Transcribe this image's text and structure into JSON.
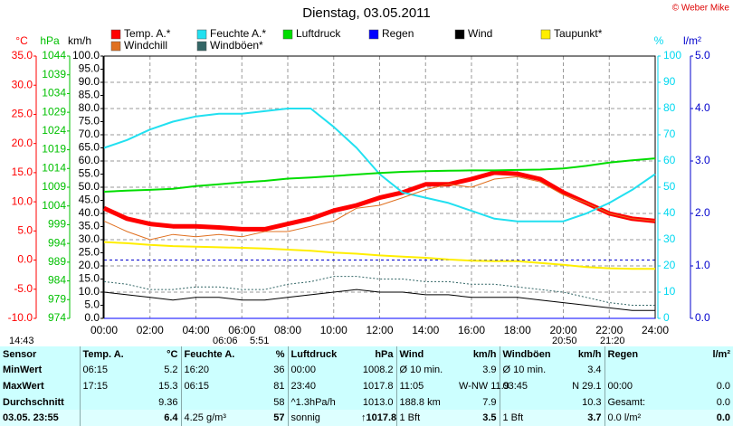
{
  "chart_data": {
    "type": "line",
    "title": "Dienstag, 03.05.2011",
    "copyright": "© Weber Mike",
    "grid": true,
    "categories": [
      "00:00",
      null,
      "02:00",
      null,
      "04:00",
      null,
      "06:00",
      null,
      "08:00",
      null,
      "10:00",
      null,
      "12:00",
      null,
      "14:00",
      null,
      "16:00",
      null,
      "18:00",
      null,
      "20:00",
      null,
      "22:00",
      null,
      "24:00"
    ],
    "axes": [
      {
        "label": "°C",
        "color": "#ff0000",
        "lim": [
          -10,
          35
        ],
        "ticks": [
          {
            "value": -10,
            "label": "-10.0"
          },
          {
            "value": -5,
            "label": "-5.0"
          },
          {
            "value": 0,
            "label": "0.0"
          },
          {
            "value": 5,
            "label": "5.0"
          },
          {
            "value": 10,
            "label": "10.0"
          },
          {
            "value": 15,
            "label": "15.0"
          },
          {
            "value": 20,
            "label": "20.0"
          },
          {
            "value": 25,
            "label": "25.0"
          },
          {
            "value": 30,
            "label": "30.0"
          },
          {
            "value": 35,
            "label": "35.0"
          }
        ]
      },
      {
        "label": "hPa",
        "color": "#00c000",
        "lim": [
          974,
          1044
        ],
        "ticks": [
          974,
          979,
          984,
          989,
          994,
          999,
          1004,
          1009,
          1014,
          1019,
          1024,
          1029,
          1034,
          1039,
          1044
        ]
      },
      {
        "label": "km/h",
        "color": "#000000",
        "lim": [
          0,
          100
        ],
        "ticks": [
          {
            "value": 0,
            "label": "0.0"
          },
          {
            "value": 5,
            "label": "5.0"
          },
          {
            "value": 10,
            "label": "10.0"
          },
          {
            "value": 15,
            "label": "15.0"
          },
          {
            "value": 20,
            "label": "20.0"
          },
          {
            "value": 25,
            "label": "25.0"
          },
          {
            "value": 30,
            "label": "30.0"
          },
          {
            "value": 35,
            "label": "35.0"
          },
          {
            "value": 40,
            "label": "40.0"
          },
          {
            "value": 45,
            "label": "45.0"
          },
          {
            "value": 50,
            "label": "50.0"
          },
          {
            "value": 55,
            "label": "55.0"
          },
          {
            "value": 60,
            "label": "60.0"
          },
          {
            "value": 65,
            "label": "65.0"
          },
          {
            "value": 70,
            "label": "70.0"
          },
          {
            "value": 75,
            "label": "75.0"
          },
          {
            "value": 80,
            "label": "80.0"
          },
          {
            "value": 85,
            "label": "85.0"
          },
          {
            "value": 90,
            "label": "90.0"
          },
          {
            "value": 95,
            "label": "95.0"
          },
          {
            "value": 100,
            "label": "100.0"
          }
        ]
      },
      {
        "label": "%",
        "color": "#00d8f0",
        "lim": [
          0,
          100
        ],
        "ticks": [
          0,
          10,
          20,
          30,
          40,
          50,
          60,
          70,
          80,
          90,
          100
        ]
      },
      {
        "label": "l/m²",
        "color": "#0000cc",
        "lim": [
          0,
          5
        ],
        "ticks": [
          {
            "value": 0,
            "label": "0.0"
          },
          {
            "value": 1,
            "label": "1.0"
          },
          {
            "value": 2,
            "label": "2.0"
          },
          {
            "value": 3,
            "label": "3.0"
          },
          {
            "value": 4,
            "label": "4.0"
          },
          {
            "value": 5,
            "label": "5.0"
          }
        ]
      }
    ],
    "series": [
      {
        "name": "Temp. A.*",
        "color": "#ff0000",
        "axis": 0,
        "width": 5,
        "values": [
          8.9,
          7.1,
          6.2,
          5.8,
          5.8,
          5.6,
          5.3,
          5.3,
          6.2,
          7.1,
          8.5,
          9.4,
          10.7,
          11.6,
          13.0,
          13.0,
          13.9,
          15.0,
          14.8,
          13.9,
          11.6,
          9.8,
          8.0,
          7.1,
          6.7
        ]
      },
      {
        "name": "Feuchte A.*",
        "color": "#22e0f0",
        "axis": 3,
        "width": 2,
        "values": [
          65,
          68,
          72,
          75,
          77,
          78,
          78,
          79,
          80,
          80,
          73,
          65,
          55,
          48,
          46,
          44,
          41,
          38,
          37,
          37,
          37,
          40,
          44,
          49,
          55
        ]
      },
      {
        "name": "Luftdruck",
        "color": "#00dd00",
        "axis": 1,
        "width": 2,
        "values": [
          1007.8,
          1008.1,
          1008.3,
          1008.6,
          1009.3,
          1009.8,
          1010.3,
          1010.7,
          1011.3,
          1011.6,
          1012.0,
          1012.4,
          1012.8,
          1013.1,
          1013.3,
          1013.4,
          1013.5,
          1013.5,
          1013.6,
          1013.7,
          1014.0,
          1014.7,
          1015.6,
          1016.2,
          1016.7
        ]
      },
      {
        "name": "Regen",
        "color": "#0000ff",
        "axis": 4,
        "width": 1,
        "values": [
          0,
          0,
          0,
          0,
          0,
          0,
          0,
          0,
          0,
          0,
          0,
          0,
          0,
          0,
          0,
          0,
          0,
          0,
          0,
          0,
          0,
          0,
          0,
          0,
          0
        ]
      },
      {
        "name": "Wind",
        "color": "#000000",
        "axis": 2,
        "width": 1,
        "values": [
          10,
          9,
          8,
          7,
          8,
          8,
          7,
          7,
          8,
          9,
          10,
          11,
          10,
          10,
          9,
          9,
          8,
          8,
          8,
          7,
          6,
          5,
          4,
          3,
          3
        ]
      },
      {
        "name": "Taupunkt*",
        "color": "#ffee00",
        "axis": 0,
        "width": 2,
        "values": [
          3.1,
          2.9,
          2.6,
          2.4,
          2.3,
          2.2,
          2.1,
          2.0,
          1.8,
          1.6,
          1.3,
          1.1,
          0.8,
          0.6,
          0.4,
          0.1,
          -0.1,
          -0.2,
          -0.2,
          -0.5,
          -0.8,
          -1.2,
          -1.4,
          -1.5,
          -1.5
        ]
      },
      {
        "name": "Windchill",
        "color": "#e07020",
        "axis": 0,
        "width": 1,
        "values": [
          6.7,
          4.9,
          3.5,
          4.4,
          4.0,
          4.4,
          4.0,
          4.9,
          4.9,
          5.8,
          6.7,
          8.9,
          9.4,
          10.7,
          12.1,
          13.0,
          12.5,
          13.9,
          14.3,
          13.4,
          11.2,
          9.8,
          8.0,
          7.1,
          6.7
        ]
      },
      {
        "name": "Windböen*",
        "color": "#336666",
        "axis": 2,
        "width": 1,
        "dash": true,
        "values": [
          14,
          13,
          11,
          11,
          12,
          12,
          11,
          11,
          13,
          14,
          16,
          16,
          15,
          15,
          14,
          14,
          13,
          13,
          12,
          11,
          10,
          8,
          6,
          5,
          5
        ]
      }
    ],
    "annotations": [
      "14:43",
      "06:06",
      "5:51",
      "20:50",
      "21:20"
    ]
  },
  "table": {
    "header": [
      "Sensor",
      "Temp. A.",
      "°C",
      "Feuchte A.",
      "%",
      "Luftdruck",
      "hPa",
      "Wind",
      "km/h",
      "Windböen",
      "km/h",
      "Regen",
      "l/m²"
    ],
    "rows": [
      [
        "MinWert",
        "06:15",
        "5.2",
        "16:20",
        "36",
        "00:00",
        "1008.2",
        "Ø 10 min.",
        "3.9",
        "Ø 10 min.",
        "3.4",
        null,
        null
      ],
      [
        "MaxWert",
        "17:15",
        "15.3",
        "06:15",
        "81",
        "23:40",
        "1017.8",
        "11:05",
        "W-NW 11.9",
        "03:45",
        "N 29.1",
        "00:00",
        "0.0"
      ],
      [
        "Durchschnitt",
        null,
        "9.36",
        null,
        "58",
        "^1.3hPa/h",
        "1013.0",
        "188.8 km",
        "7.9",
        null,
        "10.3",
        "Gesamt:",
        "0.0"
      ],
      [
        "03.05. 23:55",
        null,
        "6.4",
        "4.25 g/m³",
        "57",
        "sonnig",
        "↑1017.8",
        "1 Bft",
        "3.5",
        "1 Bft",
        "3.7",
        "0.0 l/m²",
        "0.0"
      ]
    ]
  }
}
